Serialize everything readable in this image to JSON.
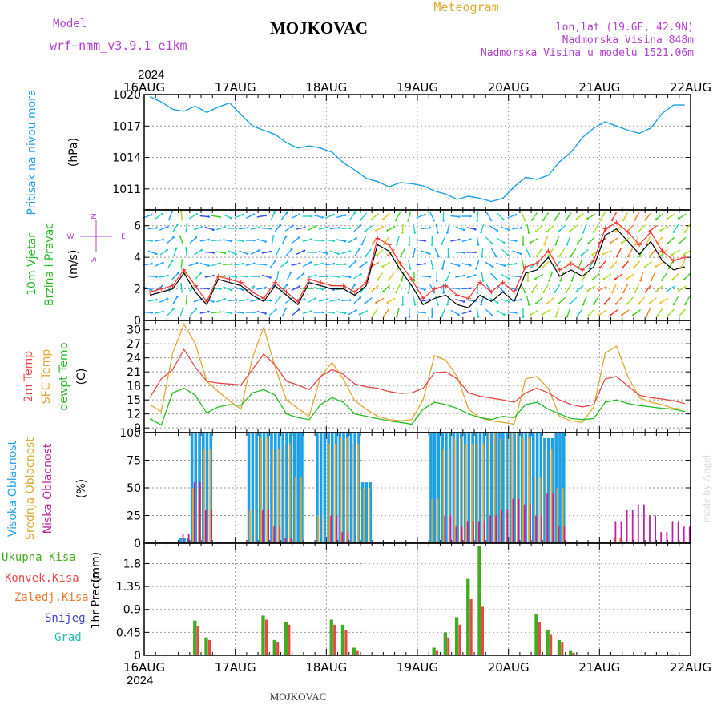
{
  "header": {
    "model_label": "Model",
    "model_name": "wrf−nmm_v3.9.1  e1km",
    "station": "MOJKOVAC",
    "product": "Meteogram",
    "lonlat": "lon,lat (19.6E, 42.9N)",
    "elevation": "Nadmorska Visina 848m",
    "model_elevation": "Nadmorska Visina u modelu 1521.06m",
    "year_top": "2024",
    "year_bottom": "2024",
    "footer_station": "MOJKOVAC",
    "credit": "made by Angel"
  },
  "colors": {
    "pressure": "#1ea0e6",
    "wind_label": "#22bb22",
    "wind_compass": "#b040d0",
    "t2m": "#e84848",
    "tsfc": "#e0a830",
    "dewpt": "#22bb22",
    "cloud_high": "#1ea0e6",
    "cloud_mid": "#e0a830",
    "cloud_low": "#c020a0",
    "precip_total": "#44aa22",
    "precip_conv": "#e84848",
    "precip_freezing": "#f07830",
    "precip_snow": "#4040d0",
    "precip_hail": "#20c0b0",
    "credit": "#d8d8d8"
  },
  "chart_data": [
    {
      "type": "line",
      "ylabel_lines": [
        "Pritisak na nivou mora",
        "(hPa)"
      ],
      "x_start": "2024-08-16T00",
      "x_step_hours": 3,
      "xlim": [
        "2024-08-16T00",
        "2024-08-22T00"
      ],
      "x_ticks": [
        "16AUG",
        "17AUG",
        "18AUG",
        "19AUG",
        "20AUG",
        "21AUG",
        "22AUG"
      ],
      "ylim": [
        1009,
        1020
      ],
      "y_ticks": [
        1011,
        1014,
        1017,
        1020
      ],
      "grid": true,
      "series": [
        {
          "values": [
            1019.8,
            1019.3,
            1018.6,
            1018.4,
            1018.9,
            1018.3,
            1018.8,
            1019.2,
            1018.1,
            1017.0,
            1016.6,
            1016.2,
            1015.4,
            1014.9,
            1015.1,
            1014.9,
            1014.5,
            1013.5,
            1012.8,
            1012.0,
            1011.7,
            1011.2,
            1011.6,
            1011.5,
            1011.3,
            1010.8,
            1010.5,
            1010.0,
            1010.3,
            1010.1,
            1009.8,
            1010.1,
            1011.2,
            1012.1,
            1011.9,
            1012.3,
            1013.6,
            1014.5,
            1015.9,
            1016.8,
            1017.4,
            1017.0,
            1016.6,
            1016.3,
            1016.8,
            1018.2,
            1019.0,
            1019.0
          ]
        }
      ]
    },
    {
      "type": "line",
      "ylabel_lines": [
        "10m Vjetar",
        "Brzina i Pravac",
        "(m/s)"
      ],
      "compass": [
        "N",
        "W",
        "E",
        "S"
      ],
      "x_start": "2024-08-16T00",
      "x_step_hours": 3,
      "xlim": [
        "2024-08-16T00",
        "2024-08-22T00"
      ],
      "ylim": [
        0,
        7
      ],
      "y_ticks": [
        0,
        2,
        4,
        6
      ],
      "grid": true,
      "series": [
        {
          "values": [
            1.8,
            2.0,
            2.2,
            3.2,
            2.2,
            1.2,
            2.8,
            2.6,
            2.4,
            1.8,
            1.4,
            2.4,
            1.8,
            1.2,
            2.6,
            2.4,
            2.2,
            2.2,
            1.8,
            2.4,
            5.2,
            4.8,
            3.6,
            2.6,
            1.4,
            2.0,
            2.2,
            1.6,
            1.4,
            2.4,
            1.8,
            2.4,
            1.8,
            3.4,
            3.6,
            4.4,
            3.2,
            3.6,
            3.2,
            3.8,
            5.8,
            6.2,
            5.6,
            4.8,
            5.6,
            4.4,
            3.8,
            4.0
          ]
        },
        {
          "values": [
            1.6,
            1.8,
            2.0,
            3.0,
            1.8,
            1.0,
            2.6,
            2.4,
            2.2,
            1.6,
            1.2,
            2.2,
            1.6,
            1.0,
            2.4,
            2.2,
            2.0,
            2.0,
            1.6,
            2.2,
            4.8,
            4.4,
            3.2,
            2.2,
            1.0,
            1.4,
            1.6,
            1.0,
            0.8,
            1.6,
            1.2,
            1.8,
            1.2,
            3.0,
            3.2,
            4.0,
            2.8,
            3.2,
            2.8,
            3.4,
            5.4,
            5.8,
            5.0,
            4.2,
            5.0,
            3.8,
            3.2,
            3.4
          ]
        }
      ],
      "wind_dir_deg": [
        90,
        70,
        30,
        0,
        60,
        90,
        90,
        100,
        90,
        80,
        90,
        30,
        40,
        60,
        80,
        90,
        90,
        90,
        45,
        225,
        230,
        225,
        200,
        180,
        90,
        170,
        190,
        100,
        90,
        180,
        140,
        120,
        90,
        170,
        225,
        220,
        215,
        210,
        220,
        225,
        230,
        225,
        220,
        215,
        220,
        225,
        230,
        225
      ]
    },
    {
      "type": "line",
      "ylabel_lines": [
        "2m Temp",
        "SFC Temp",
        "dewpt Temp",
        "(C)"
      ],
      "x_start": "2024-08-16T00",
      "x_step_hours": 3,
      "xlim": [
        "2024-08-16T00",
        "2024-08-22T00"
      ],
      "ylim": [
        8,
        32
      ],
      "y_ticks": [
        9,
        12,
        15,
        18,
        21,
        24,
        27,
        30
      ],
      "grid": true,
      "series": [
        {
          "values": [
            15.5,
            19.5,
            21.5,
            25.8,
            22.0,
            19.0,
            18.6,
            18.4,
            18.2,
            21.5,
            24.8,
            22.5,
            19.0,
            18.2,
            17.2,
            20.0,
            21.5,
            20.5,
            18.4,
            17.8,
            17.5,
            16.8,
            16.4,
            16.5,
            17.5,
            20.8,
            21.0,
            19.5,
            16.5,
            15.8,
            15.4,
            15.0,
            14.5,
            16.5,
            17.5,
            16.5,
            15.0,
            14.0,
            13.5,
            14.0,
            19.5,
            20.0,
            18.0,
            16.0,
            15.5,
            15.2,
            14.8,
            14.2
          ]
        },
        {
          "values": [
            14.0,
            12.5,
            25.0,
            31.2,
            27.0,
            19.0,
            16.8,
            14.8,
            13.0,
            24.0,
            30.5,
            22.0,
            15.0,
            13.2,
            11.5,
            20.0,
            23.0,
            19.5,
            14.8,
            13.0,
            11.5,
            10.8,
            10.5,
            10.8,
            15.0,
            24.5,
            23.5,
            20.0,
            13.0,
            11.2,
            10.5,
            10.2,
            9.8,
            19.5,
            20.0,
            17.5,
            11.5,
            10.5,
            10.2,
            13.5,
            25.0,
            26.5,
            20.0,
            15.5,
            14.5,
            14.0,
            13.2,
            13.0
          ]
        },
        {
          "values": [
            11.0,
            9.6,
            16.5,
            17.5,
            16.0,
            12.2,
            13.5,
            14.0,
            13.8,
            16.5,
            17.2,
            16.0,
            12.0,
            11.2,
            10.8,
            14.0,
            15.5,
            14.5,
            12.0,
            11.5,
            11.0,
            10.5,
            10.2,
            9.8,
            13.0,
            14.5,
            14.0,
            13.2,
            12.0,
            11.2,
            10.8,
            11.5,
            11.2,
            14.0,
            14.5,
            13.0,
            12.0,
            11.0,
            10.8,
            11.0,
            14.5,
            15.0,
            14.2,
            13.8,
            13.5,
            13.2,
            13.0,
            12.5
          ]
        }
      ]
    },
    {
      "type": "bar",
      "ylabel_lines": [
        "Visoka Oblacnost",
        "Srednja Oblacnost",
        "Niska Oblacnost",
        "(%)"
      ],
      "x_start": "2024-08-16T00",
      "x_step_hours": 3,
      "xlim": [
        "2024-08-16T00",
        "2024-08-22T00"
      ],
      "ylim": [
        0,
        100
      ],
      "y_ticks": [
        0,
        25,
        50,
        75,
        100
      ],
      "grid": true,
      "series": [
        {
          "values": [
            0,
            0,
            0,
            5,
            100,
            100,
            0,
            0,
            0,
            100,
            100,
            100,
            100,
            100,
            0,
            100,
            100,
            100,
            100,
            55,
            0,
            0,
            0,
            0,
            0,
            100,
            100,
            100,
            100,
            100,
            100,
            100,
            100,
            100,
            100,
            95,
            100,
            0,
            0,
            0,
            0,
            0,
            0,
            0,
            0,
            0,
            0,
            0
          ]
        },
        {
          "values": [
            0,
            0,
            0,
            0,
            50,
            85,
            0,
            0,
            0,
            30,
            95,
            85,
            90,
            60,
            0,
            25,
            90,
            95,
            90,
            50,
            0,
            0,
            0,
            0,
            0,
            40,
            85,
            95,
            90,
            90,
            100,
            95,
            100,
            95,
            60,
            85,
            50,
            0,
            0,
            0,
            0,
            5,
            0,
            0,
            0,
            0,
            0,
            0
          ]
        },
        {
          "values": [
            0,
            0,
            0,
            8,
            55,
            30,
            0,
            0,
            0,
            0,
            30,
            15,
            5,
            0,
            0,
            0,
            25,
            10,
            0,
            0,
            0,
            0,
            0,
            0,
            0,
            0,
            25,
            15,
            20,
            20,
            25,
            30,
            40,
            35,
            25,
            45,
            15,
            0,
            0,
            0,
            0,
            20,
            30,
            35,
            25,
            10,
            20,
            15
          ]
        }
      ]
    },
    {
      "type": "bar",
      "ylabel_lines": [
        "1hr Precip",
        "(mm)"
      ],
      "legend": [
        "Ukupna  Kisa",
        "Konvek.Kisa",
        "Zaledj.Kisa",
        "Snijeg",
        "Grad"
      ],
      "x_start": "2024-08-16T00",
      "x_step_hours": 3,
      "xlim": [
        "2024-08-16T00",
        "2024-08-22T00"
      ],
      "x_ticks": [
        "16AUG",
        "17AUG",
        "18AUG",
        "19AUG",
        "20AUG",
        "21AUG",
        "22AUG"
      ],
      "ylim": [
        0,
        2.2
      ],
      "y_ticks": [
        0,
        0.45,
        0.9,
        1.35,
        1.8
      ],
      "grid": true,
      "series": [
        {
          "values": [
            0,
            0,
            0,
            0,
            0.68,
            0.35,
            0,
            0,
            0,
            0,
            0.78,
            0.3,
            0.66,
            0,
            0,
            0,
            0.7,
            0.6,
            0.15,
            0,
            0,
            0,
            0,
            0,
            0,
            0.15,
            0.45,
            0.75,
            1.5,
            2.15,
            0,
            0,
            0,
            0,
            0.8,
            0.5,
            0.3,
            0.1,
            0,
            0,
            0,
            0,
            0,
            0,
            0,
            0,
            0.02,
            0
          ]
        },
        {
          "values": [
            0,
            0,
            0,
            0,
            0.58,
            0.3,
            0,
            0,
            0,
            0,
            0.7,
            0.25,
            0.6,
            0,
            0,
            0,
            0.6,
            0.5,
            0.1,
            0,
            0,
            0,
            0,
            0,
            0,
            0.1,
            0.35,
            0.6,
            1.1,
            0.95,
            0,
            0,
            0,
            0,
            0.65,
            0.4,
            0.25,
            0.05,
            0,
            0,
            0,
            0,
            0,
            0,
            0,
            0,
            0,
            0
          ]
        }
      ]
    }
  ]
}
